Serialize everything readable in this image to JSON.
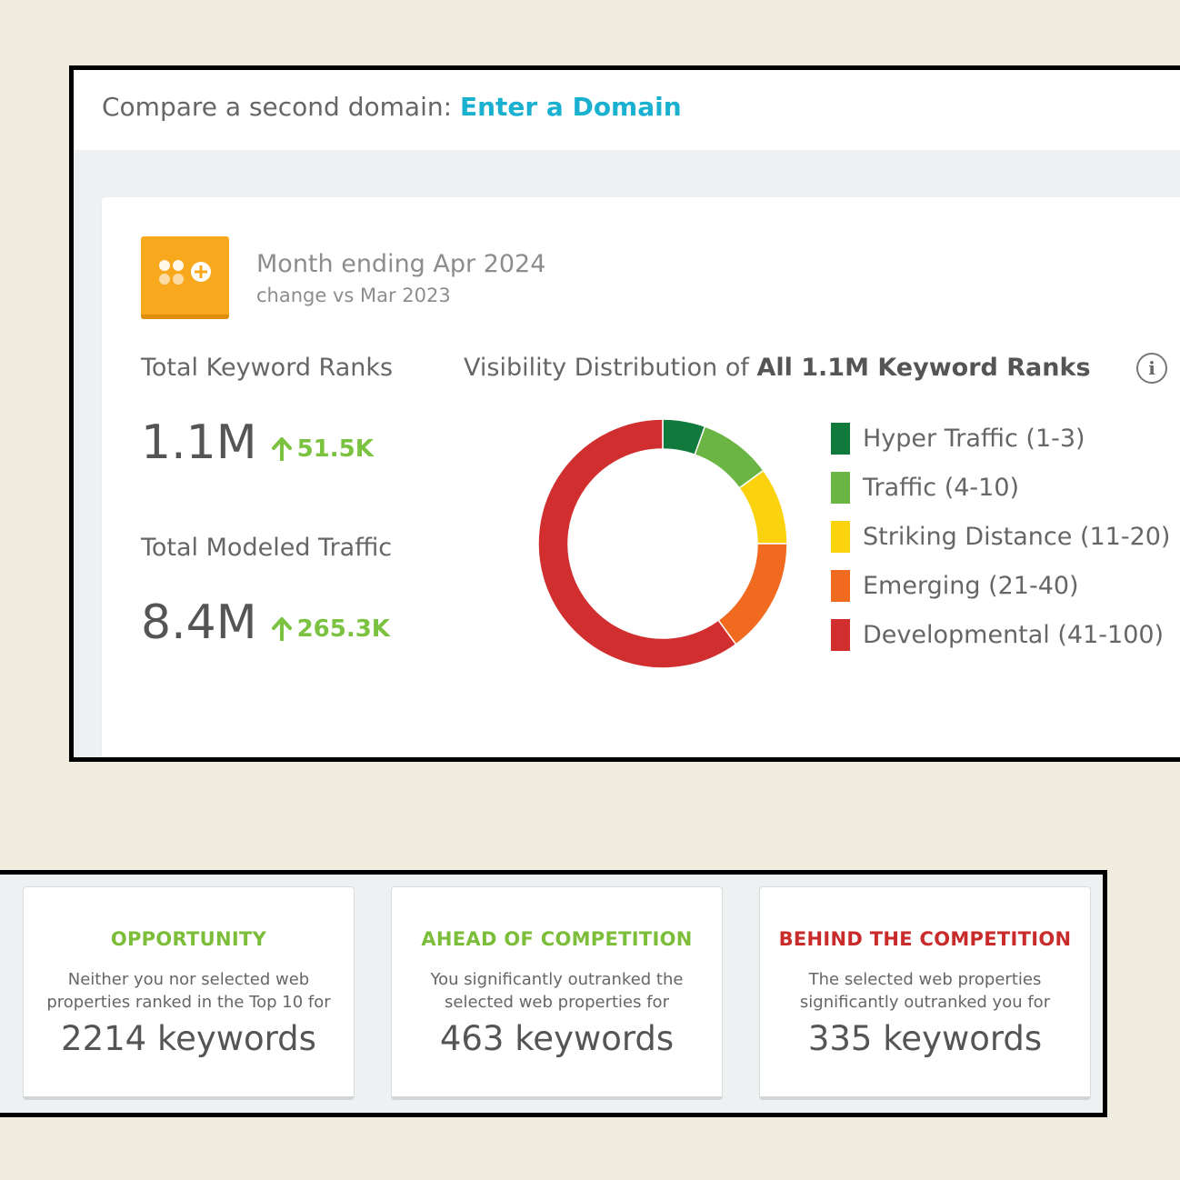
{
  "compare": {
    "label": "Compare a second domain: ",
    "link": "Enter a Domain"
  },
  "period": {
    "title": "Month ending Apr 2024",
    "subtitle": "change vs Mar 2023"
  },
  "metrics": {
    "keyword_ranks": {
      "label": "Total Keyword Ranks",
      "value": "1.1M",
      "change": "51.5K"
    },
    "modeled_traffic": {
      "label": "Total Modeled Traffic",
      "value": "8.4M",
      "change": "265.3K"
    }
  },
  "visibility": {
    "title_prefix": "Visibility Distribution of ",
    "title_bold": "All 1.1M Keyword Ranks",
    "info_icon": "i"
  },
  "chart_data": {
    "type": "pie",
    "title": "Visibility Distribution of All 1.1M Keyword Ranks",
    "categories": [
      "Hyper Traffic (1-3)",
      "Traffic (4-10)",
      "Striking Distance (11-20)",
      "Emerging (21-40)",
      "Developmental (41-100)"
    ],
    "values": [
      5.5,
      9.5,
      10,
      15,
      60
    ],
    "colors": [
      "#0f7a3c",
      "#6bb545",
      "#fad30e",
      "#f06a20",
      "#d12f2f"
    ],
    "donut": true,
    "legend": "right"
  },
  "cards": [
    {
      "title": "OPPORTUNITY",
      "title_color": "#7cbd3a",
      "desc_line1": "Neither you nor selected web",
      "desc_line2": "properties ranked in the Top 10 for",
      "count": "2214 keywords"
    },
    {
      "title": "AHEAD OF COMPETITION",
      "title_color": "#7cbd3a",
      "desc_line1": "You significantly outranked the",
      "desc_line2": "selected web properties for",
      "count": "463 keywords"
    },
    {
      "title": "BEHIND THE COMPETITION",
      "title_color": "#c92a2a",
      "desc_line1": "The selected web properties",
      "desc_line2": "significantly outranked you for",
      "count": "335 keywords"
    }
  ]
}
